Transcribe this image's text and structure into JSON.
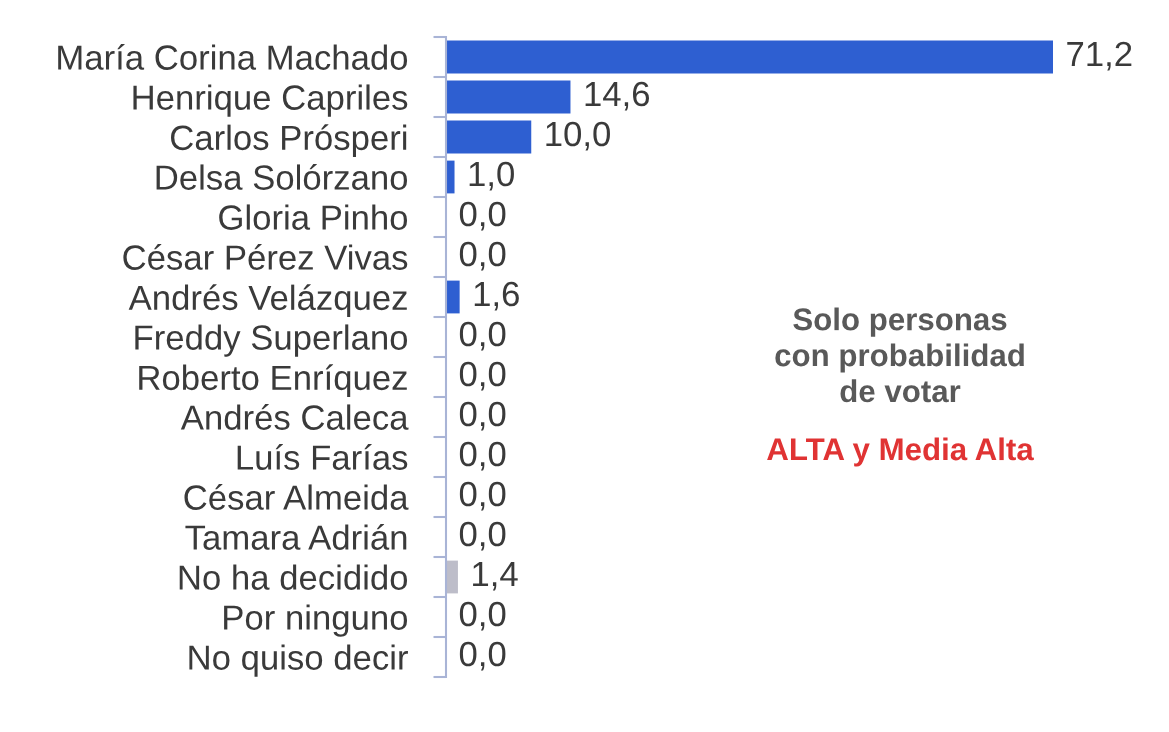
{
  "chart_data": {
    "type": "bar",
    "orientation": "horizontal",
    "categories": [
      "María Corina Machado",
      "Henrique Capriles",
      "Carlos Prósperi",
      "Delsa Solórzano",
      "Gloria Pinho",
      "César Pérez Vivas",
      "Andrés Velázquez",
      "Freddy Superlano",
      "Roberto Enríquez",
      "Andrés Caleca",
      "Luís Farías",
      "César Almeida",
      "Tamara Adrián",
      "No ha decidido",
      "Por ninguno",
      "No quiso decir"
    ],
    "values": [
      71.2,
      14.6,
      10.0,
      1.0,
      0.0,
      0.0,
      1.6,
      0.0,
      0.0,
      0.0,
      0.0,
      0.0,
      0.0,
      1.4,
      0.0,
      0.0
    ],
    "colors": [
      "#2e5fd1",
      "#2e5fd1",
      "#2e5fd1",
      "#2e5fd1",
      "#2e5fd1",
      "#2e5fd1",
      "#2e5fd1",
      "#2e5fd1",
      "#2e5fd1",
      "#2e5fd1",
      "#2e5fd1",
      "#2e5fd1",
      "#2e5fd1",
      "#bdbdc9",
      "#2e5fd1",
      "#2e5fd1"
    ],
    "value_labels": [
      "71,2",
      "14,6",
      "10,0",
      "1,0",
      "0,0",
      "0,0",
      "1,6",
      "0,0",
      "0,0",
      "0,0",
      "0,0",
      "0,0",
      "0,0",
      "1,4",
      "0,0",
      "0,0"
    ],
    "tick_labels": "y",
    "annotations": [
      "Solo personas\ncon probabilidad\nde votar",
      "ALTA y Media Alta"
    ]
  }
}
